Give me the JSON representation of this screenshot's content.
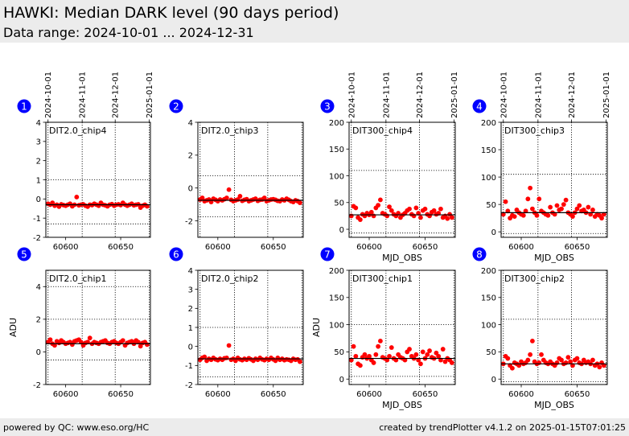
{
  "header": {
    "title": "HAWKI: Median DARK level (90 days period)",
    "subtitle": "Data range: 2024-10-01 ... 2024-12-31"
  },
  "footer": {
    "left": "powered by QC: www.eso.org/HC",
    "right": "created by trendPlotter v4.1.2 on 2025-01-15T07:01:25"
  },
  "colors": {
    "marker": "#ff0000",
    "badge": "#0000ff",
    "median_line": "#000000"
  },
  "chart_data": [
    {
      "type": "scatter",
      "id": 1,
      "label": "DIT2.0_chip4",
      "xlim": [
        60582,
        60677
      ],
      "ylim": [
        -2,
        4
      ],
      "xticks": [
        60600,
        60650
      ],
      "yticks": [
        -2,
        -1,
        0,
        1,
        2,
        3,
        4
      ],
      "xlabel": "",
      "ylabel": "",
      "date_ticks": [
        {
          "mjd": 60584,
          "label": "2024-10-01"
        },
        {
          "mjd": 60615,
          "label": "2024-11-01"
        },
        {
          "mjd": 60645,
          "label": "2024-12-01"
        },
        {
          "mjd": 60676,
          "label": "2025-01-01"
        }
      ],
      "median": -0.3,
      "bands": [
        -1.3,
        1.0
      ],
      "x": [
        60584,
        60586,
        60588,
        60590,
        60592,
        60594,
        60596,
        60598,
        60600,
        60602,
        60604,
        60606,
        60608,
        60610,
        60612,
        60614,
        60616,
        60618,
        60620,
        60622,
        60624,
        60626,
        60628,
        60630,
        60632,
        60634,
        60636,
        60638,
        60640,
        60642,
        60644,
        60646,
        60648,
        60650,
        60652,
        60654,
        60656,
        60658,
        60660,
        60662,
        60664,
        60666,
        60668,
        60670,
        60672,
        60674
      ],
      "y": [
        -0.25,
        -0.3,
        -0.2,
        -0.35,
        -0.3,
        -0.4,
        -0.28,
        -0.32,
        -0.35,
        -0.3,
        -0.25,
        -0.38,
        -0.3,
        0.1,
        -0.33,
        -0.3,
        -0.28,
        -0.35,
        -0.4,
        -0.3,
        -0.32,
        -0.25,
        -0.3,
        -0.35,
        -0.2,
        -0.3,
        -0.33,
        -0.38,
        -0.3,
        -0.27,
        -0.35,
        -0.3,
        -0.28,
        -0.32,
        -0.2,
        -0.3,
        -0.35,
        -0.3,
        -0.25,
        -0.33,
        -0.3,
        -0.28,
        -0.45,
        -0.35,
        -0.3,
        -0.38
      ]
    },
    {
      "type": "scatter",
      "id": 2,
      "label": "DIT2.0_chip3",
      "xlim": [
        60582,
        60677
      ],
      "ylim": [
        -3,
        4
      ],
      "xticks": [
        60600,
        60650
      ],
      "yticks": [
        -2,
        0,
        2,
        4
      ],
      "xlabel": "",
      "ylabel": "",
      "median": -0.75,
      "bands": [
        -1.75,
        0.75
      ],
      "x": [
        60584,
        60586,
        60588,
        60590,
        60592,
        60594,
        60596,
        60598,
        60600,
        60602,
        60604,
        60606,
        60608,
        60610,
        60612,
        60614,
        60616,
        60618,
        60620,
        60622,
        60624,
        60626,
        60628,
        60630,
        60632,
        60634,
        60636,
        60638,
        60640,
        60642,
        60644,
        60646,
        60648,
        60650,
        60652,
        60654,
        60656,
        60658,
        60660,
        60662,
        60664,
        60666,
        60668,
        60670,
        60672,
        60674
      ],
      "y": [
        -0.7,
        -0.6,
        -0.8,
        -0.75,
        -0.7,
        -0.85,
        -0.65,
        -0.72,
        -0.8,
        -0.7,
        -0.75,
        -0.68,
        -0.6,
        -0.1,
        -0.72,
        -0.8,
        -0.75,
        -0.7,
        -0.5,
        -0.78,
        -0.72,
        -0.68,
        -0.8,
        -0.75,
        -0.7,
        -0.65,
        -0.78,
        -0.72,
        -0.7,
        -0.6,
        -0.8,
        -0.75,
        -0.7,
        -0.68,
        -0.72,
        -0.78,
        -0.8,
        -0.7,
        -0.75,
        -0.65,
        -0.72,
        -0.8,
        -0.85,
        -0.75,
        -0.8,
        -0.9
      ]
    },
    {
      "type": "scatter",
      "id": 3,
      "label": "DIT300_chip4",
      "xlim": [
        60582,
        60677
      ],
      "ylim": [
        -15,
        200
      ],
      "xticks": [
        60600,
        60650
      ],
      "yticks": [
        0,
        50,
        100,
        150,
        200
      ],
      "xlabel": "MJD_OBS",
      "ylabel": "",
      "date_ticks": [
        {
          "mjd": 60584,
          "label": "2024-10-01"
        },
        {
          "mjd": 60615,
          "label": "2024-11-01"
        },
        {
          "mjd": 60645,
          "label": "2024-12-01"
        },
        {
          "mjd": 60676,
          "label": "2025-01-01"
        }
      ],
      "median": 27,
      "bands": [
        -7,
        110
      ],
      "x": [
        60584,
        60586,
        60588,
        60590,
        60592,
        60594,
        60596,
        60598,
        60600,
        60602,
        60604,
        60606,
        60608,
        60610,
        60612,
        60614,
        60616,
        60618,
        60620,
        60622,
        60624,
        60626,
        60628,
        60630,
        60632,
        60634,
        60636,
        60638,
        60640,
        60642,
        60644,
        60646,
        60648,
        60650,
        60652,
        60654,
        60656,
        60658,
        60660,
        60662,
        60664,
        60666,
        60668,
        60670,
        60672,
        60674
      ],
      "y": [
        25,
        43,
        40,
        22,
        18,
        28,
        25,
        30,
        27,
        32,
        25,
        40,
        45,
        55,
        30,
        28,
        25,
        42,
        35,
        28,
        25,
        30,
        22,
        27,
        30,
        35,
        38,
        28,
        25,
        40,
        30,
        22,
        35,
        38,
        28,
        25,
        32,
        35,
        28,
        30,
        38,
        22,
        25,
        20,
        28,
        22
      ]
    },
    {
      "type": "scatter",
      "id": 4,
      "label": "DIT300_chip3",
      "xlim": [
        60582,
        60677
      ],
      "ylim": [
        -10,
        200
      ],
      "xticks": [
        60600,
        60650
      ],
      "yticks": [
        0,
        50,
        100,
        150,
        200
      ],
      "xlabel": "MJD_OBS",
      "ylabel": "",
      "date_ticks": [
        {
          "mjd": 60584,
          "label": "2024-10-01"
        },
        {
          "mjd": 60615,
          "label": "2024-11-01"
        },
        {
          "mjd": 60645,
          "label": "2024-12-01"
        },
        {
          "mjd": 60676,
          "label": "2025-01-01"
        }
      ],
      "median": 35,
      "bands": [
        -3,
        105
      ],
      "x": [
        60584,
        60586,
        60588,
        60590,
        60592,
        60594,
        60596,
        60598,
        60600,
        60602,
        60604,
        60606,
        60608,
        60610,
        60612,
        60614,
        60616,
        60618,
        60620,
        60622,
        60624,
        60626,
        60628,
        60630,
        60632,
        60634,
        60636,
        60638,
        60640,
        60642,
        60644,
        60646,
        60648,
        60650,
        60652,
        60654,
        60656,
        60658,
        60660,
        60662,
        60664,
        60666,
        60668,
        60670,
        60672,
        60674
      ],
      "y": [
        32,
        55,
        38,
        25,
        30,
        28,
        40,
        35,
        32,
        30,
        38,
        60,
        80,
        42,
        35,
        30,
        60,
        38,
        35,
        32,
        30,
        45,
        35,
        32,
        48,
        40,
        42,
        50,
        58,
        35,
        32,
        28,
        35,
        42,
        48,
        38,
        40,
        35,
        45,
        32,
        40,
        28,
        32,
        30,
        25,
        32
      ]
    },
    {
      "type": "scatter",
      "id": 5,
      "label": "DIT2.0_chip1",
      "xlim": [
        60582,
        60677
      ],
      "ylim": [
        -2,
        5
      ],
      "xticks": [
        60600,
        60650
      ],
      "yticks": [
        -2,
        0,
        2,
        4
      ],
      "xlabel": "",
      "ylabel": "ADU",
      "median": 0.5,
      "bands": [
        -0.5,
        2.0,
        4.0
      ],
      "x": [
        60584,
        60586,
        60588,
        60590,
        60592,
        60594,
        60596,
        60598,
        60600,
        60602,
        60604,
        60606,
        60608,
        60610,
        60612,
        60614,
        60616,
        60618,
        60620,
        60622,
        60624,
        60626,
        60628,
        60630,
        60632,
        60634,
        60636,
        60638,
        60640,
        60642,
        60644,
        60646,
        60648,
        60650,
        60652,
        60654,
        60656,
        60658,
        60660,
        60662,
        60664,
        60666,
        60668,
        60670,
        60672,
        60674
      ],
      "y": [
        0.6,
        0.75,
        0.5,
        0.4,
        0.65,
        0.55,
        0.7,
        0.6,
        0.5,
        0.55,
        0.6,
        0.45,
        0.65,
        0.7,
        0.75,
        0.6,
        0.4,
        0.55,
        0.6,
        0.85,
        0.5,
        0.6,
        0.55,
        0.5,
        0.6,
        0.65,
        0.7,
        0.55,
        0.5,
        0.6,
        0.65,
        0.55,
        0.5,
        0.6,
        0.7,
        0.4,
        0.55,
        0.6,
        0.65,
        0.5,
        0.7,
        0.6,
        0.35,
        0.55,
        0.6,
        0.45
      ]
    },
    {
      "type": "scatter",
      "id": 6,
      "label": "DIT2.0_chip2",
      "xlim": [
        60582,
        60677
      ],
      "ylim": [
        -2,
        4
      ],
      "xticks": [
        60600,
        60650
      ],
      "yticks": [
        -2,
        -1,
        0,
        1,
        2,
        3,
        4
      ],
      "xlabel": "",
      "ylabel": "",
      "median": -0.65,
      "bands": [
        -1.6,
        1.0
      ],
      "x": [
        60584,
        60586,
        60588,
        60590,
        60592,
        60594,
        60596,
        60598,
        60600,
        60602,
        60604,
        60606,
        60608,
        60610,
        60612,
        60614,
        60616,
        60618,
        60620,
        60622,
        60624,
        60626,
        60628,
        60630,
        60632,
        60634,
        60636,
        60638,
        60640,
        60642,
        60644,
        60646,
        60648,
        60650,
        60652,
        60654,
        60656,
        60658,
        60660,
        60662,
        60664,
        60666,
        60668,
        60670,
        60672,
        60674
      ],
      "y": [
        -0.7,
        -0.6,
        -0.55,
        -0.75,
        -0.65,
        -0.7,
        -0.6,
        -0.68,
        -0.72,
        -0.65,
        -0.7,
        -0.62,
        -0.6,
        0.05,
        -0.7,
        -0.65,
        -0.75,
        -0.6,
        -0.68,
        -0.72,
        -0.65,
        -0.7,
        -0.62,
        -0.68,
        -0.75,
        -0.65,
        -0.7,
        -0.6,
        -0.68,
        -0.72,
        -0.65,
        -0.7,
        -0.6,
        -0.68,
        -0.75,
        -0.6,
        -0.7,
        -0.65,
        -0.72,
        -0.68,
        -0.7,
        -0.75,
        -0.65,
        -0.7,
        -0.68,
        -0.8
      ]
    },
    {
      "type": "scatter",
      "id": 7,
      "label": "DIT300_chip1",
      "xlim": [
        60582,
        60677
      ],
      "ylim": [
        -10,
        200
      ],
      "xticks": [
        60600,
        60650
      ],
      "yticks": [
        0,
        50,
        100,
        150,
        200
      ],
      "xlabel": "MJD_OBS",
      "ylabel": "ADU",
      "median": 38,
      "bands": [
        5,
        100
      ],
      "x": [
        60584,
        60586,
        60588,
        60590,
        60592,
        60594,
        60596,
        60598,
        60600,
        60602,
        60604,
        60606,
        60608,
        60610,
        60612,
        60614,
        60616,
        60618,
        60620,
        60622,
        60624,
        60626,
        60628,
        60630,
        60632,
        60634,
        60636,
        60638,
        60640,
        60642,
        60644,
        60646,
        60648,
        60650,
        60652,
        60654,
        60656,
        60658,
        60660,
        60662,
        60664,
        60666,
        60668,
        60670,
        60672,
        60674
      ],
      "y": [
        35,
        60,
        42,
        28,
        25,
        40,
        45,
        38,
        42,
        35,
        30,
        45,
        60,
        70,
        40,
        38,
        35,
        42,
        58,
        38,
        35,
        45,
        40,
        38,
        35,
        50,
        55,
        42,
        38,
        45,
        35,
        28,
        50,
        38,
        45,
        52,
        40,
        38,
        48,
        42,
        35,
        55,
        32,
        38,
        35,
        30
      ]
    },
    {
      "type": "scatter",
      "id": 8,
      "label": "DIT300_chip2",
      "xlim": [
        60582,
        60677
      ],
      "ylim": [
        -10,
        200
      ],
      "xticks": [
        60600,
        60650
      ],
      "yticks": [
        0,
        50,
        100,
        150,
        200
      ],
      "xlabel": "MJD_OBS",
      "ylabel": "",
      "median": 28,
      "bands": [
        -5,
        110
      ],
      "x": [
        60584,
        60586,
        60588,
        60590,
        60592,
        60594,
        60596,
        60598,
        60600,
        60602,
        60604,
        60606,
        60608,
        60610,
        60612,
        60614,
        60616,
        60618,
        60620,
        60622,
        60624,
        60626,
        60628,
        60630,
        60632,
        60634,
        60636,
        60638,
        60640,
        60642,
        60644,
        60646,
        60648,
        60650,
        60652,
        60654,
        60656,
        60658,
        60660,
        60662,
        60664,
        60666,
        60668,
        60670,
        60672,
        60674
      ],
      "y": [
        28,
        42,
        38,
        25,
        20,
        30,
        28,
        25,
        32,
        28,
        30,
        35,
        45,
        70,
        32,
        28,
        30,
        45,
        35,
        30,
        28,
        32,
        28,
        25,
        30,
        38,
        35,
        28,
        30,
        40,
        32,
        25,
        35,
        38,
        30,
        28,
        35,
        30,
        32,
        28,
        35,
        25,
        28,
        22,
        30,
        25
      ]
    }
  ]
}
